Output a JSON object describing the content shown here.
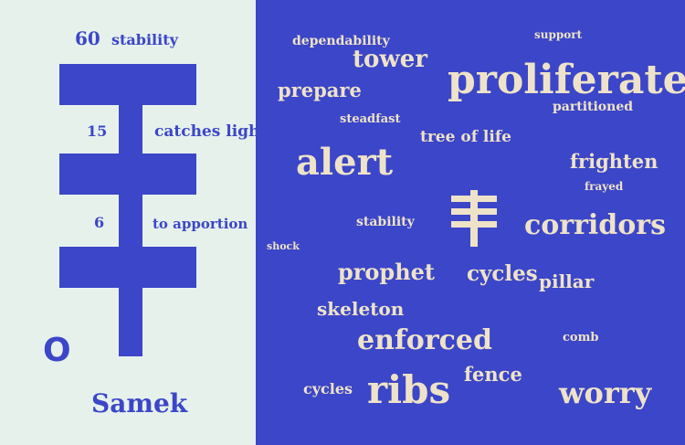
{
  "colors": {
    "blue": "#3c46c8",
    "pale": "#e6f1ec",
    "cream": "#eee3c8"
  },
  "left_panel": {
    "values": [
      {
        "number": "60",
        "meaning": "stability"
      },
      {
        "number": "15",
        "meaning": "catches light"
      },
      {
        "number": "6",
        "meaning": "to apportion"
      }
    ],
    "letter_o": "O",
    "letter_name": "Samek"
  },
  "word_cloud": [
    "dependability",
    "support",
    "tower",
    "prepare",
    "proliferate",
    "partitioned",
    "steadfast",
    "tree of life",
    "alert",
    "frighten",
    "frayed",
    "stability",
    "corridors",
    "shock",
    "prophet",
    "cycles",
    "pillar",
    "skeleton",
    "enforced",
    "comb",
    "fence",
    "cycles",
    "ribs",
    "worry"
  ],
  "icons": {
    "center_glyph": "samekh-glyph-icon"
  }
}
